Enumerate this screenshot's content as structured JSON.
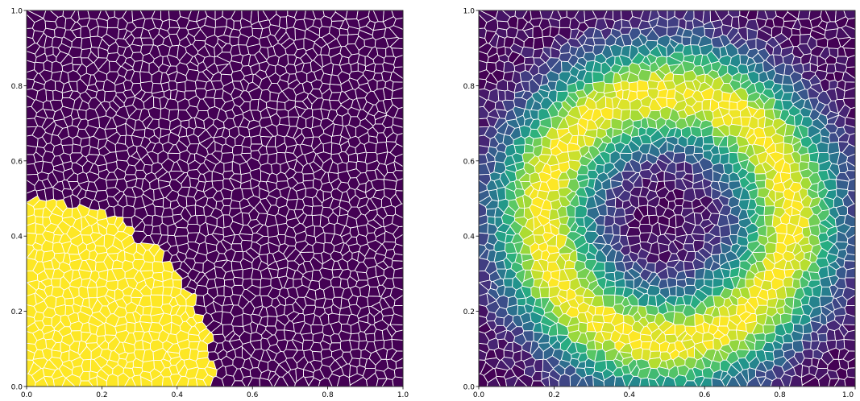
{
  "chart_data": [
    {
      "type": "heatmap",
      "subtype": "voronoi-cells",
      "title": "",
      "xlabel": "",
      "ylabel": "",
      "xlim": [
        0.0,
        1.0
      ],
      "ylim": [
        0.0,
        1.0
      ],
      "x_ticks": [
        "0.0",
        "0.2",
        "0.4",
        "0.6",
        "0.8",
        "1.0"
      ],
      "y_ticks": [
        "0.0",
        "0.2",
        "0.4",
        "0.6",
        "0.8",
        "1.0"
      ],
      "colormap": "viridis",
      "edge_color": "#ffffff",
      "grid": false,
      "legend": "none",
      "field": {
        "kind": "binary-disk",
        "center": [
          0.0,
          0.0
        ],
        "radius": 0.5,
        "inside_value": 1.0,
        "outside_value": 0.0
      }
    },
    {
      "type": "heatmap",
      "subtype": "voronoi-cells",
      "title": "",
      "xlabel": "",
      "ylabel": "",
      "xlim": [
        0.0,
        1.0
      ],
      "ylim": [
        0.0,
        1.0
      ],
      "x_ticks": [
        "0.0",
        "0.2",
        "0.4",
        "0.6",
        "0.8",
        "1.0"
      ],
      "y_ticks": [
        "0.0",
        "0.2",
        "0.4",
        "0.6",
        "0.8",
        "1.0"
      ],
      "colormap": "viridis",
      "edge_color": "#ffffff",
      "grid": false,
      "legend": "none",
      "field": {
        "kind": "ring",
        "center": [
          0.5,
          0.45
        ],
        "ring_radius": 0.33,
        "ring_width": 0.14,
        "min_value": 0.0,
        "max_value": 1.0
      }
    }
  ]
}
